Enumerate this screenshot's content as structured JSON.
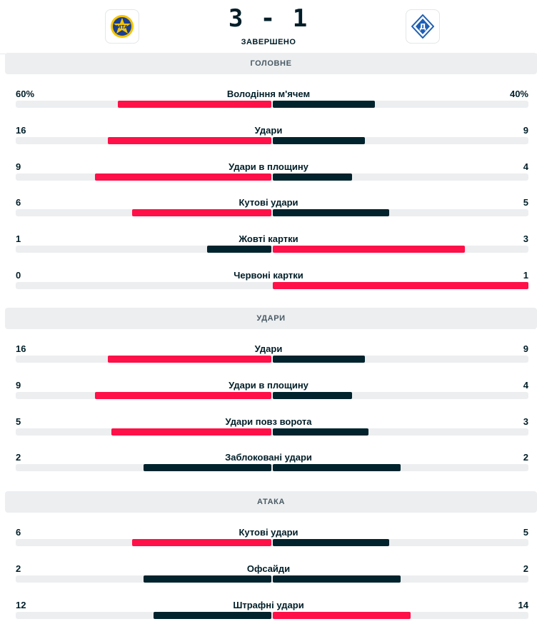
{
  "match": {
    "score": "3 - 1",
    "status": "ЗАВЕРШЕНО",
    "home_logo_icon": "maccabi-tel-aviv-crest-icon",
    "away_logo_icon": "dynamo-kyiv-crest-icon"
  },
  "colors": {
    "highlight": "#ff1048",
    "dark": "#00232d",
    "track": "#eceef0"
  },
  "sections": [
    {
      "title": "ГОЛОВНЕ",
      "stats": [
        {
          "label": "Володіння м'ячем",
          "home": "60%",
          "away": "40%",
          "home_frac": 0.6,
          "away_frac": 0.4,
          "winner": "home"
        },
        {
          "label": "Удари",
          "home": "16",
          "away": "9",
          "home_frac": 0.64,
          "away_frac": 0.36,
          "winner": "home"
        },
        {
          "label": "Удари в площину",
          "home": "9",
          "away": "4",
          "home_frac": 0.69,
          "away_frac": 0.31,
          "winner": "home"
        },
        {
          "label": "Кутові удари",
          "home": "6",
          "away": "5",
          "home_frac": 0.545,
          "away_frac": 0.455,
          "winner": "home"
        },
        {
          "label": "Жовті картки",
          "home": "1",
          "away": "3",
          "home_frac": 0.25,
          "away_frac": 0.75,
          "winner": "away"
        },
        {
          "label": "Червоні картки",
          "home": "0",
          "away": "1",
          "home_frac": 0.0,
          "away_frac": 1.0,
          "winner": "away"
        }
      ]
    },
    {
      "title": "УДАРИ",
      "stats": [
        {
          "label": "Удари",
          "home": "16",
          "away": "9",
          "home_frac": 0.64,
          "away_frac": 0.36,
          "winner": "home"
        },
        {
          "label": "Удари в площину",
          "home": "9",
          "away": "4",
          "home_frac": 0.69,
          "away_frac": 0.31,
          "winner": "home"
        },
        {
          "label": "Удари повз ворота",
          "home": "5",
          "away": "3",
          "home_frac": 0.625,
          "away_frac": 0.375,
          "winner": "home"
        },
        {
          "label": "Заблоковані удари",
          "home": "2",
          "away": "2",
          "home_frac": 0.5,
          "away_frac": 0.5,
          "winner": "none"
        }
      ]
    },
    {
      "title": "АТАКА",
      "stats": [
        {
          "label": "Кутові удари",
          "home": "6",
          "away": "5",
          "home_frac": 0.545,
          "away_frac": 0.455,
          "winner": "home"
        },
        {
          "label": "Офсайди",
          "home": "2",
          "away": "2",
          "home_frac": 0.5,
          "away_frac": 0.5,
          "winner": "none"
        },
        {
          "label": "Штрафні удари",
          "home": "12",
          "away": "14",
          "home_frac": 0.46,
          "away_frac": 0.54,
          "winner": "away"
        }
      ]
    }
  ]
}
